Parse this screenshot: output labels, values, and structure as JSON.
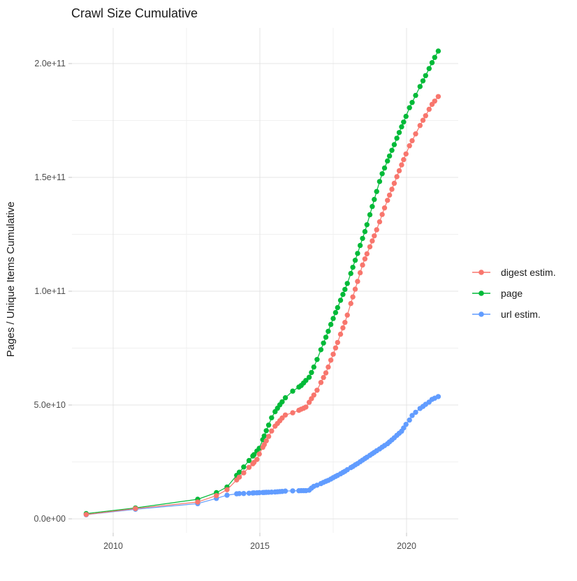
{
  "title": "Crawl Size Cumulative",
  "y_axis": {
    "label": "Pages / Unique Items Cumulative",
    "ticks": [
      "2.0e+11",
      "1.5e+11",
      "1.0e+11",
      "5.0e+10",
      "0.0e+00"
    ],
    "tick_values_e9": [
      200,
      150,
      100,
      50,
      0
    ],
    "minor_gridlines_e9": [
      175,
      125,
      75,
      25
    ]
  },
  "x_axis": {
    "ticks": [
      "2010",
      "2015",
      "2020"
    ],
    "tick_values": [
      2010,
      2015,
      2020
    ],
    "minor_gridlines": [
      2012.5,
      2017.5
    ]
  },
  "legend": {
    "items": [
      {
        "label": "digest estim.",
        "color": "#F8766D"
      },
      {
        "label": "page",
        "color": "#00BA38"
      },
      {
        "label": "url estim.",
        "color": "#619CFF"
      }
    ]
  },
  "colors": {
    "digest": "#F8766D",
    "page": "#00BA38",
    "url": "#619CFF",
    "major_gridline": "#e4e4e4",
    "minor_gridline": "#f0f0f0",
    "tick_mark": "#c4c4c4",
    "background": "#ffffff"
  },
  "chart_data": {
    "type": "scatter",
    "title": "Crawl Size Cumulative",
    "xlabel": "",
    "ylabel": "Pages / Unique Items Cumulative",
    "x_unit": "year (crawl date)",
    "values_unit": "1e9 items (billions)",
    "xlim": [
      2008.6,
      2021.8
    ],
    "ylim_e9": [
      0,
      215
    ],
    "grid": true,
    "legend_position": "right",
    "x": [
      2009.08,
      2010.76,
      2012.88,
      2013.52,
      2013.88,
      2014.21,
      2014.3,
      2014.45,
      2014.63,
      2014.76,
      2014.8,
      2014.9,
      2014.98,
      2015.1,
      2015.15,
      2015.22,
      2015.3,
      2015.4,
      2015.52,
      2015.6,
      2015.68,
      2015.76,
      2015.87,
      2016.12,
      2016.33,
      2016.41,
      2016.49,
      2016.57,
      2016.68,
      2016.76,
      2016.84,
      2016.95,
      2017.08,
      2017.17,
      2017.25,
      2017.33,
      2017.42,
      2017.5,
      2017.58,
      2017.65,
      2017.75,
      2017.83,
      2017.9,
      2017.98,
      2018.1,
      2018.17,
      2018.25,
      2018.33,
      2018.42,
      2018.5,
      2018.58,
      2018.65,
      2018.75,
      2018.83,
      2018.9,
      2018.98,
      2019.08,
      2019.17,
      2019.25,
      2019.35,
      2019.42,
      2019.5,
      2019.58,
      2019.67,
      2019.75,
      2019.83,
      2019.9,
      2019.98,
      2020.1,
      2020.19,
      2020.31,
      2020.46,
      2020.56,
      2020.65,
      2020.77,
      2020.87,
      2020.96,
      2021.08
    ],
    "series": [
      {
        "name": "digest estim.",
        "color": "#F8766D",
        "values_e9": [
          1.9,
          4.5,
          7.4,
          10.2,
          12.8,
          17.1,
          18.3,
          20.2,
          22.6,
          24.2,
          24.8,
          26.1,
          28.5,
          31.4,
          32.6,
          34.3,
          36.2,
          38.6,
          40.7,
          41.9,
          43.1,
          44.3,
          45.6,
          46.6,
          47.7,
          48.2,
          48.6,
          49.1,
          51.2,
          52.8,
          54.4,
          56.5,
          59.9,
          62.1,
          64.1,
          66.7,
          69.7,
          72.3,
          75.1,
          77.5,
          81.1,
          83.9,
          86.3,
          89.5,
          94.6,
          97.5,
          100.9,
          104.3,
          108.1,
          111.5,
          114.2,
          116.4,
          119.5,
          122.1,
          124.3,
          127.0,
          130.5,
          133.7,
          136.6,
          139.9,
          142.2,
          144.8,
          147.4,
          150.3,
          152.9,
          155.5,
          157.8,
          160.3,
          163.9,
          166.1,
          169.1,
          172.8,
          175.1,
          177.1,
          179.9,
          182.1,
          183.5,
          185.5
        ]
      },
      {
        "name": "page",
        "color": "#00BA38",
        "values_e9": [
          2.3,
          4.8,
          8.6,
          11.5,
          14.0,
          19.1,
          20.5,
          22.8,
          25.6,
          27.6,
          28.2,
          29.8,
          31.0,
          34.8,
          36.4,
          38.7,
          41.2,
          44.4,
          47.1,
          48.6,
          50.1,
          51.4,
          53.2,
          56.1,
          57.9,
          58.6,
          59.7,
          60.8,
          62.2,
          64.3,
          66.7,
          70.0,
          74.3,
          77.2,
          79.8,
          82.4,
          85.4,
          88.0,
          90.6,
          92.8,
          96.0,
          98.6,
          100.8,
          103.4,
          107.8,
          110.5,
          113.6,
          116.6,
          120.1,
          123.2,
          126.2,
          129.2,
          133.6,
          137.2,
          140.3,
          143.8,
          148.2,
          151.6,
          154.1,
          157.2,
          159.4,
          161.9,
          164.4,
          167.2,
          169.7,
          172.2,
          174.3,
          176.8,
          180.6,
          182.9,
          186.0,
          189.9,
          192.4,
          194.7,
          197.8,
          200.4,
          202.7,
          205.5
        ]
      },
      {
        "name": "url estim.",
        "color": "#619CFF",
        "values_e9": [
          1.8,
          4.2,
          6.7,
          9.0,
          10.4,
          11.0,
          11.1,
          11.15,
          11.25,
          11.35,
          11.4,
          11.45,
          11.5,
          11.55,
          11.6,
          11.65,
          11.7,
          11.75,
          11.8,
          11.9,
          12.0,
          12.05,
          12.2,
          12.3,
          12.35,
          12.4,
          12.4,
          12.4,
          12.6,
          13.5,
          14.3,
          14.8,
          15.5,
          16.0,
          16.5,
          16.9,
          17.5,
          18.1,
          18.65,
          19.1,
          19.8,
          20.4,
          20.9,
          21.6,
          22.5,
          23.0,
          23.7,
          24.3,
          25.1,
          25.8,
          26.5,
          27.1,
          27.9,
          28.6,
          29.2,
          29.9,
          30.7,
          31.5,
          32.2,
          33.0,
          33.8,
          34.7,
          35.6,
          36.7,
          37.6,
          38.5,
          39.9,
          41.5,
          43.4,
          45.4,
          46.8,
          48.5,
          49.4,
          50.3,
          51.3,
          52.5,
          53.0,
          53.7
        ]
      }
    ]
  }
}
